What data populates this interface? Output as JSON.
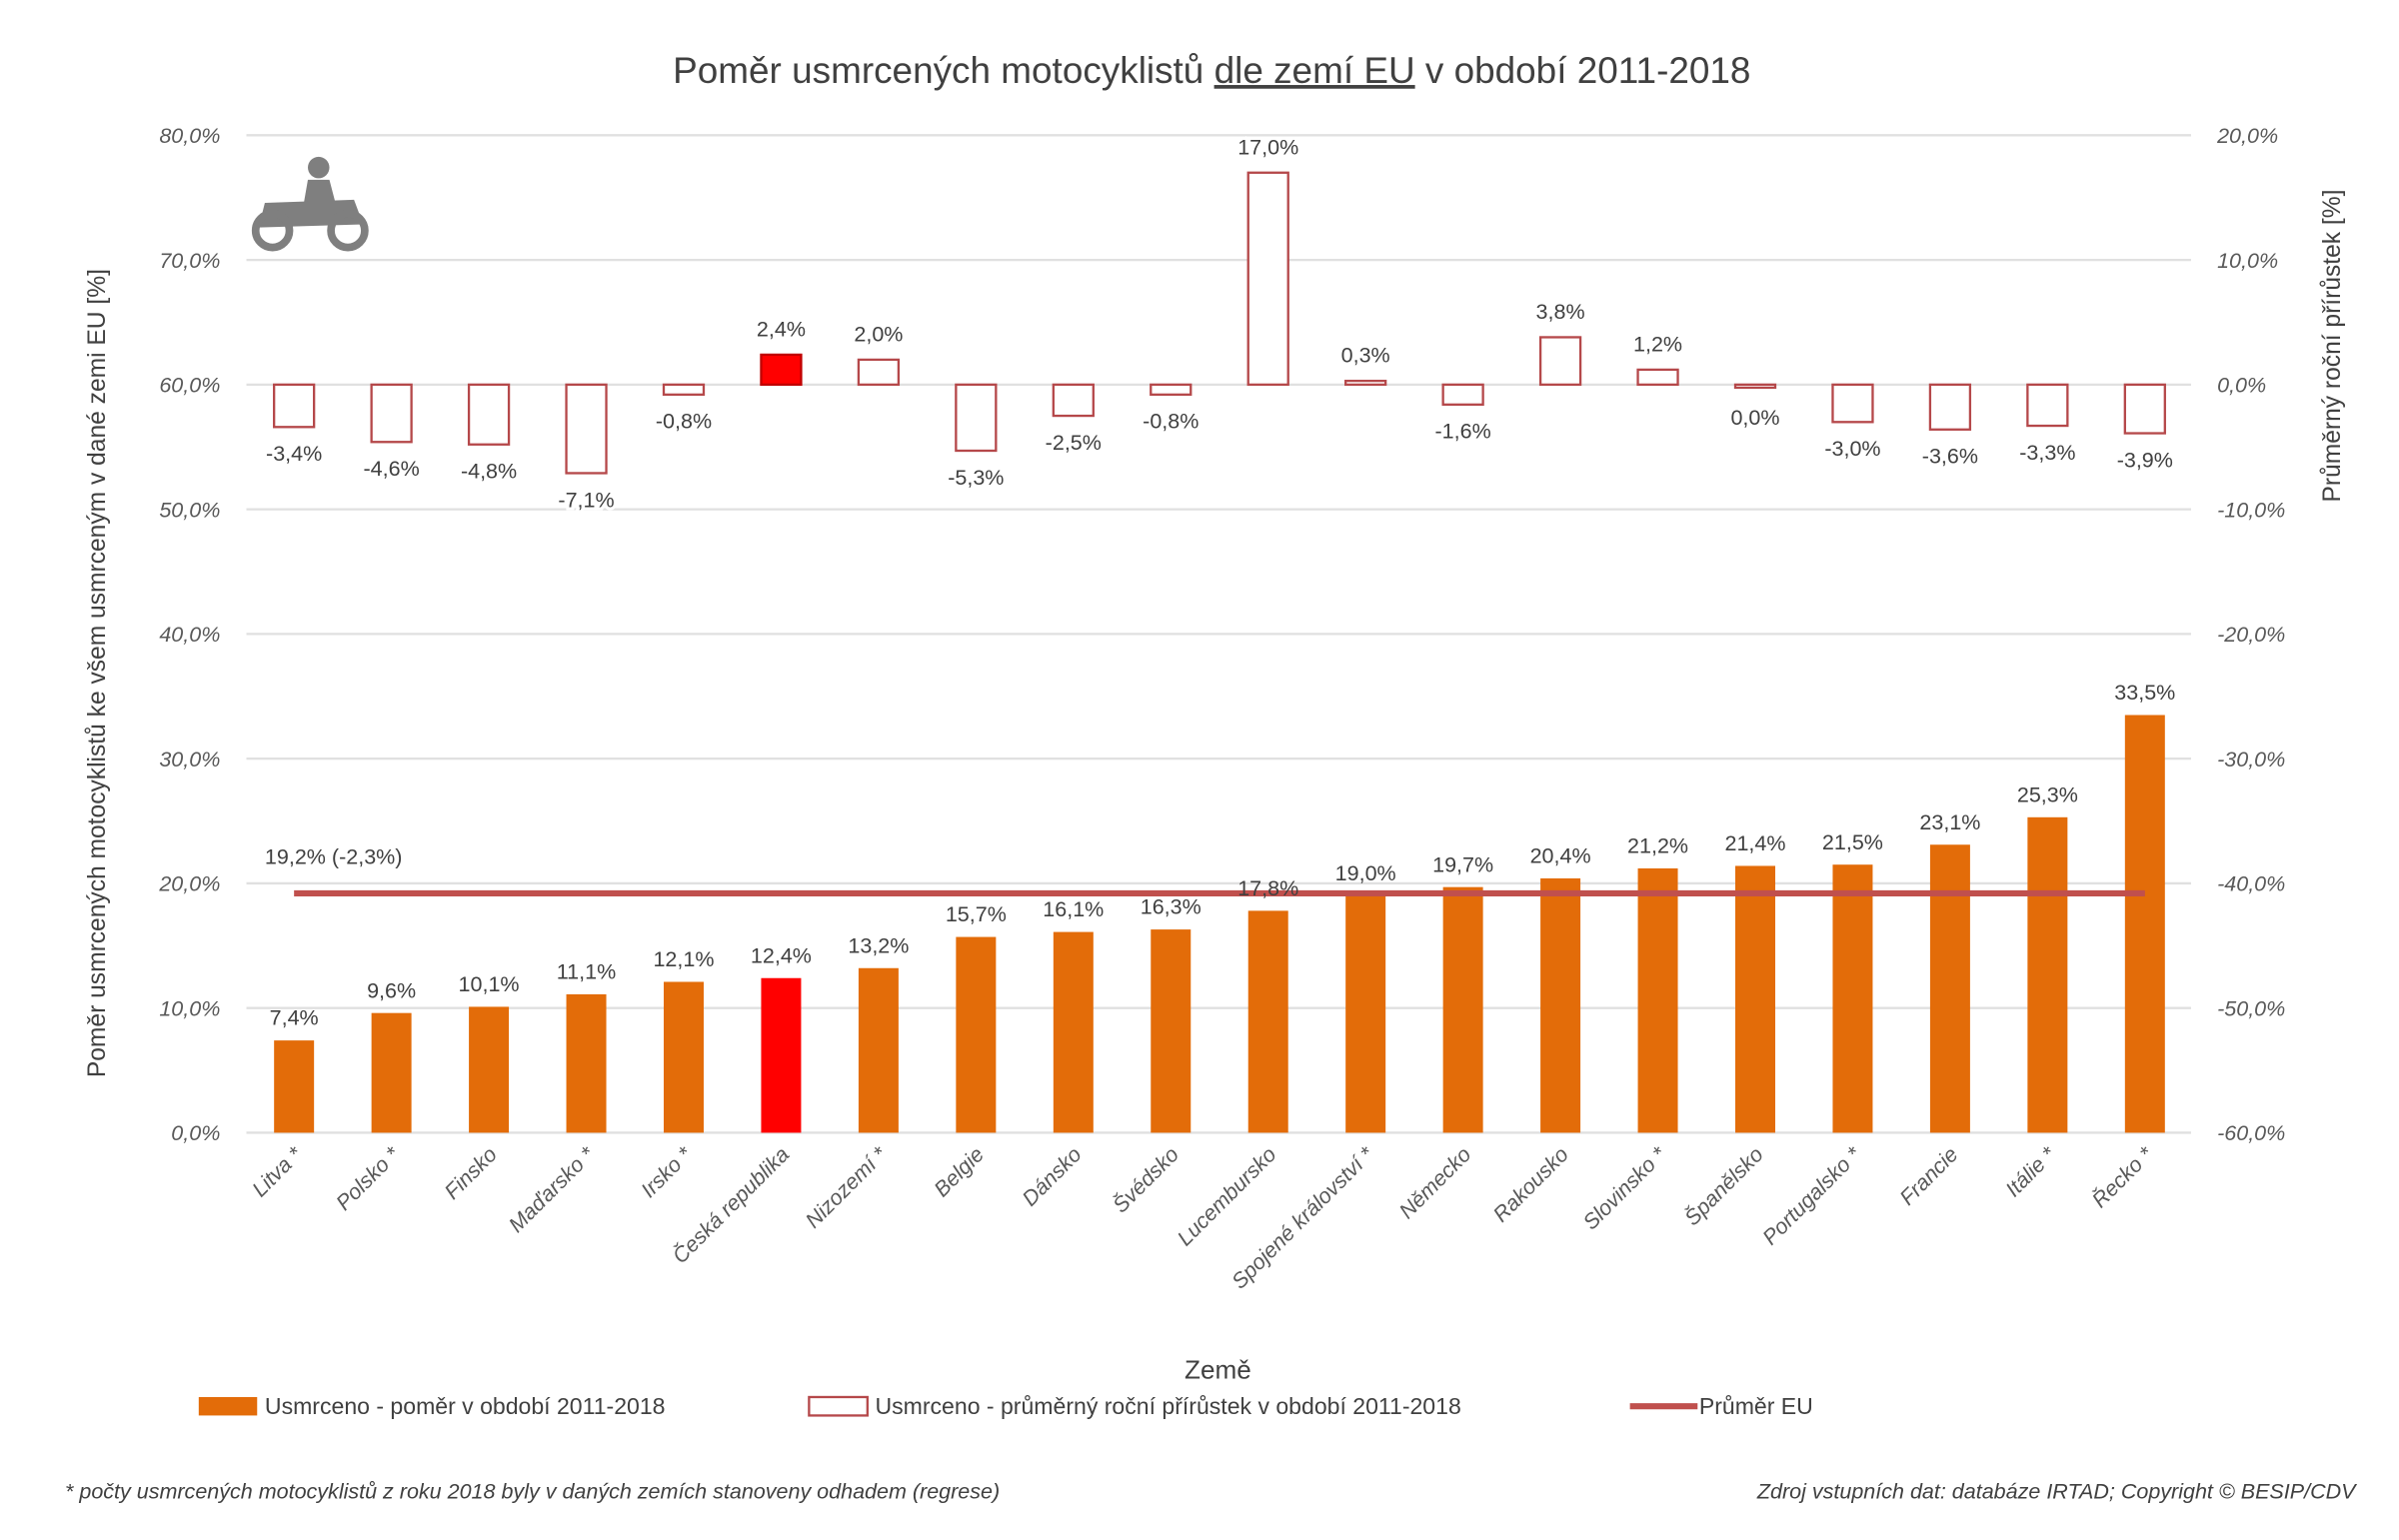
{
  "chart_data": {
    "type": "bar",
    "title": "Poměr usmrcených motocyklistů dle zemí EU v období 2011-2018",
    "title_parts": [
      "Poměr usmrcených motocyklistů ",
      "dle zemí EU",
      " v období 2011-2018"
    ],
    "xlabel": "Země",
    "ylabel": "Poměr usmrcených motocyklistů ke všem usmrceným v dané zemi EU [%]",
    "y2label": "Průměrný roční přírůstek [%]",
    "ylim": [
      0,
      80
    ],
    "y2lim": [
      -60,
      20
    ],
    "yticks": [
      "0,0%",
      "10,0%",
      "20,0%",
      "30,0%",
      "40,0%",
      "50,0%",
      "60,0%",
      "70,0%",
      "80,0%"
    ],
    "y2ticks": [
      "-60,0%",
      "-50,0%",
      "-40,0%",
      "-30,0%",
      "-20,0%",
      "-10,0%",
      "0,0%",
      "10,0%",
      "20,0%"
    ],
    "grid": true,
    "legend_position": "bottom",
    "categories": [
      "Litva *",
      "Polsko *",
      "Finsko",
      "Maďarsko *",
      "Irsko *",
      "Česká republika",
      "Nizozemí *",
      "Belgie",
      "Dánsko",
      "Švédsko",
      "Lucembursko",
      "Spojené království *",
      "Německo",
      "Rakousko",
      "Slovinsko *",
      "Španělsko",
      "Portugalsko *",
      "Francie",
      "Itálie *",
      "Řecko *"
    ],
    "highlight_category": "Česká republika",
    "series": [
      {
        "name": "Usmrceno - poměr v období 2011-2018",
        "axis": "left",
        "style": "filled",
        "color": "#e36c09",
        "values": [
          7.4,
          9.6,
          10.1,
          11.1,
          12.1,
          12.4,
          13.2,
          15.7,
          16.1,
          16.3,
          17.8,
          19.0,
          19.7,
          20.4,
          21.2,
          21.4,
          21.5,
          23.1,
          25.3,
          33.5
        ],
        "labels": [
          "7,4%",
          "9,6%",
          "10,1%",
          "11,1%",
          "12,1%",
          "12,4%",
          "13,2%",
          "15,7%",
          "16,1%",
          "16,3%",
          "17,8%",
          "19,0%",
          "19,7%",
          "20,4%",
          "21,2%",
          "21,4%",
          "21,5%",
          "23,1%",
          "25,3%",
          "33,5%"
        ]
      },
      {
        "name": "Usmrceno - průměrný roční přírůstek v období 2011-2018",
        "axis": "right",
        "style": "outline",
        "color": "#b5484a",
        "values": [
          -3.4,
          -4.6,
          -4.8,
          -7.1,
          -0.8,
          2.4,
          2.0,
          -5.3,
          -2.5,
          -0.8,
          17.0,
          0.3,
          -1.6,
          3.8,
          1.2,
          0.0,
          -3.0,
          -3.6,
          -3.3,
          -3.9
        ],
        "labels": [
          "-3,4%",
          "-4,6%",
          "-4,8%",
          "-7,1%",
          "-0,8%",
          "2,4%",
          "2,0%",
          "-5,3%",
          "-2,5%",
          "-0,8%",
          "17,0%",
          "0,3%",
          "-1,6%",
          "3,8%",
          "1,2%",
          "0,0%",
          "-3,0%",
          "-3,6%",
          "-3,3%",
          "-3,9%"
        ]
      },
      {
        "name": "Průměr EU",
        "axis": "left",
        "style": "line",
        "color": "#c0504d",
        "value": 19.2,
        "label": "19,2% (-2,3%)"
      }
    ],
    "highlight_color": "#ff0000"
  },
  "icon": "motorcycle-icon",
  "footnote": "* počty usmrcených motocyklistů z roku 2018 byly v daných zemích stanoveny odhadem (regrese)",
  "source": "Zdroj vstupních dat: databáze IRTAD; Copyright © BESIP/CDV"
}
